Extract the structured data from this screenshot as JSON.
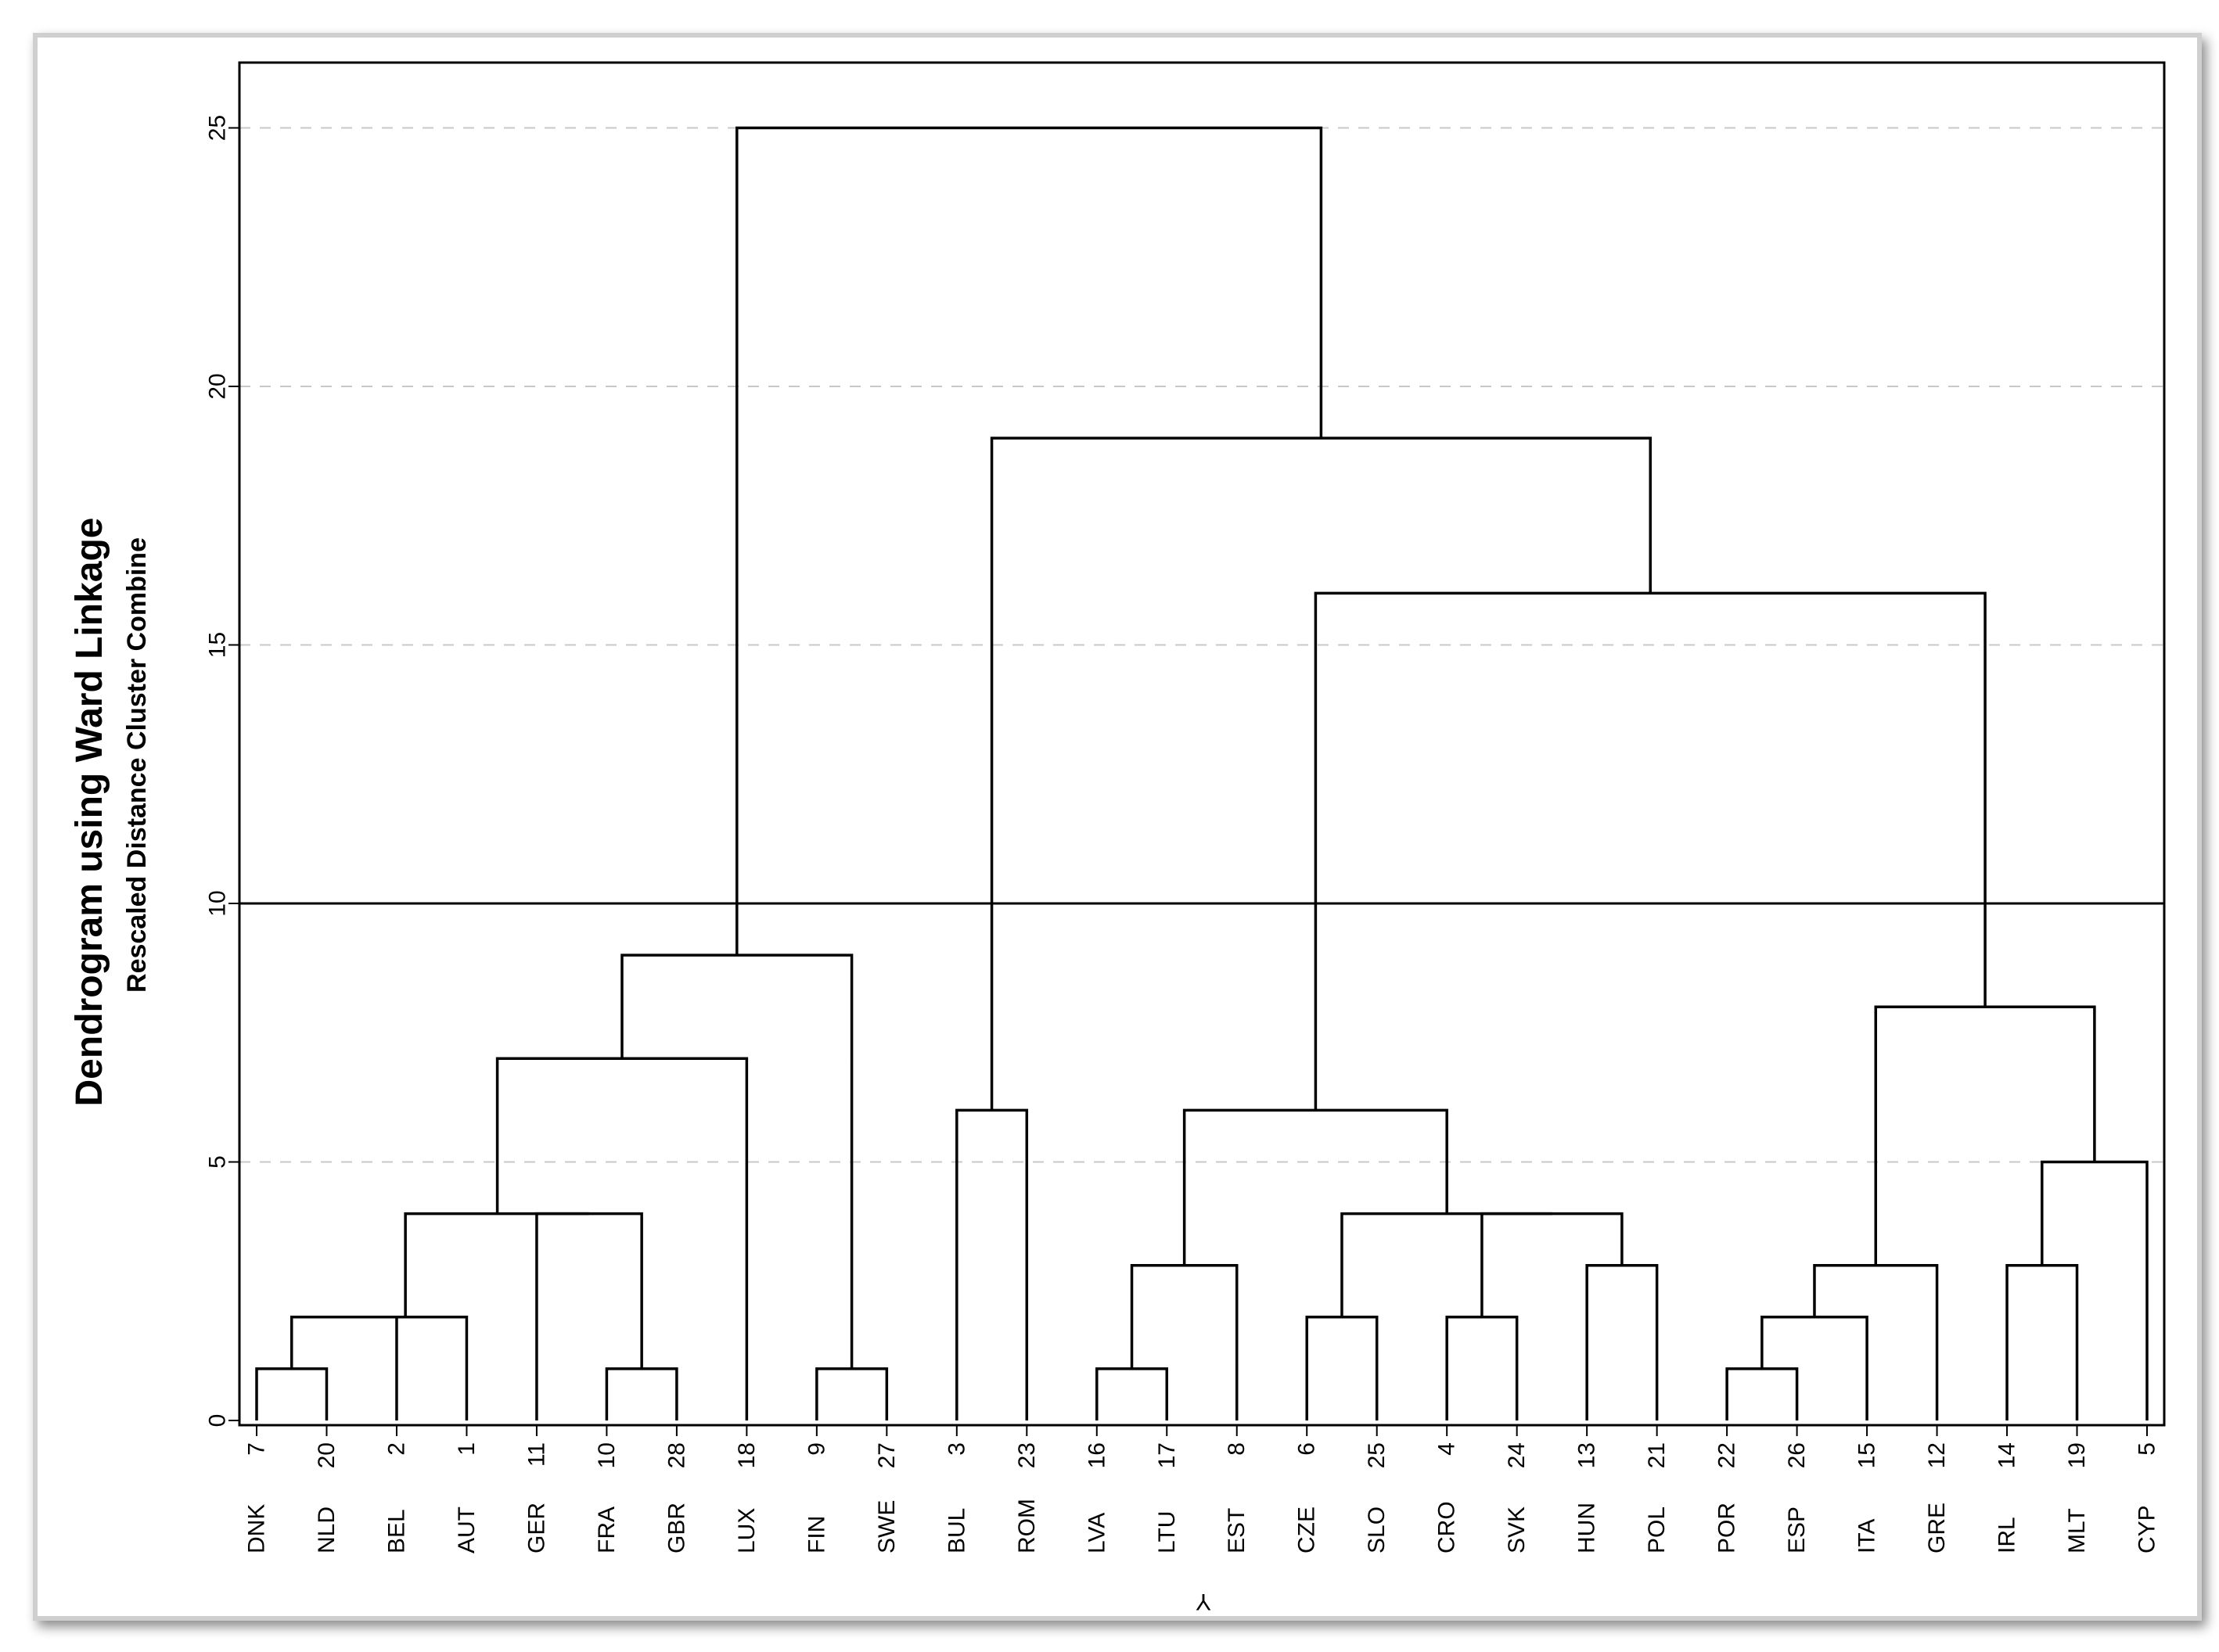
{
  "chart_data": {
    "type": "dendrogram",
    "title": "Dendrogram using Ward Linkage",
    "ylabel": "Rescaled Distance Cluster Combine",
    "xlabel": "Y",
    "ylim": [
      0,
      26.3
    ],
    "yticks": [
      0,
      5,
      10,
      15,
      20,
      25
    ],
    "grid": "horizontal dashed",
    "cut_line": 10,
    "leaves": [
      {
        "number": "7",
        "name": "DNK"
      },
      {
        "number": "20",
        "name": "NLD"
      },
      {
        "number": "2",
        "name": "BEL"
      },
      {
        "number": "1",
        "name": "AUT"
      },
      {
        "number": "11",
        "name": "GER"
      },
      {
        "number": "10",
        "name": "FRA"
      },
      {
        "number": "28",
        "name": "GBR"
      },
      {
        "number": "18",
        "name": "LUX"
      },
      {
        "number": "9",
        "name": "FIN"
      },
      {
        "number": "27",
        "name": "SWE"
      },
      {
        "number": "3",
        "name": "BUL"
      },
      {
        "number": "23",
        "name": "ROM"
      },
      {
        "number": "16",
        "name": "LVA"
      },
      {
        "number": "17",
        "name": "LTU"
      },
      {
        "number": "8",
        "name": "EST"
      },
      {
        "number": "6",
        "name": "CZE"
      },
      {
        "number": "25",
        "name": "SLO"
      },
      {
        "number": "4",
        "name": "CRO"
      },
      {
        "number": "24",
        "name": "SVK"
      },
      {
        "number": "13",
        "name": "HUN"
      },
      {
        "number": "21",
        "name": "POL"
      },
      {
        "number": "22",
        "name": "POR"
      },
      {
        "number": "26",
        "name": "ESP"
      },
      {
        "number": "15",
        "name": "ITA"
      },
      {
        "number": "12",
        "name": "GRE"
      },
      {
        "number": "14",
        "name": "IRL"
      },
      {
        "number": "19",
        "name": "MLT"
      },
      {
        "number": "5",
        "name": "CYP"
      }
    ],
    "merges": [
      {
        "id": "M1",
        "left": "L0",
        "right": "L1",
        "height": 1
      },
      {
        "id": "M2",
        "left": "M1",
        "right": "L2",
        "height": 2
      },
      {
        "id": "M3",
        "left": "M2",
        "right": "L3",
        "height": 2
      },
      {
        "id": "M4",
        "left": "L5",
        "right": "L6",
        "height": 1
      },
      {
        "id": "M5",
        "left": "L4",
        "right": "M4",
        "height": 4
      },
      {
        "id": "M6",
        "left": "M3",
        "right": "M5",
        "height": 4
      },
      {
        "id": "M7",
        "left": "M6",
        "right": "L7",
        "height": 7
      },
      {
        "id": "M8",
        "left": "L8",
        "right": "L9",
        "height": 1
      },
      {
        "id": "M9",
        "left": "M7",
        "right": "M8",
        "height": 9
      },
      {
        "id": "M10",
        "left": "L10",
        "right": "L11",
        "height": 6
      },
      {
        "id": "M11",
        "left": "L12",
        "right": "L13",
        "height": 1
      },
      {
        "id": "M12",
        "left": "M11",
        "right": "L14",
        "height": 3
      },
      {
        "id": "M13",
        "left": "L15",
        "right": "L16",
        "height": 2
      },
      {
        "id": "M14",
        "left": "L17",
        "right": "L18",
        "height": 2
      },
      {
        "id": "M15",
        "left": "L19",
        "right": "L20",
        "height": 3
      },
      {
        "id": "M16",
        "left": "M14",
        "right": "M15",
        "height": 4
      },
      {
        "id": "M17",
        "left": "M13",
        "right": "M16",
        "height": 4
      },
      {
        "id": "M18",
        "left": "M12",
        "right": "M17",
        "height": 6
      },
      {
        "id": "M19",
        "left": "L21",
        "right": "L22",
        "height": 1
      },
      {
        "id": "M20",
        "left": "M19",
        "right": "L23",
        "height": 2
      },
      {
        "id": "M21",
        "left": "M20",
        "right": "L24",
        "height": 3
      },
      {
        "id": "M22",
        "left": "L25",
        "right": "L26",
        "height": 3
      },
      {
        "id": "M23",
        "left": "M22",
        "right": "L27",
        "height": 5
      },
      {
        "id": "M24",
        "left": "M21",
        "right": "M23",
        "height": 8
      },
      {
        "id": "M25",
        "left": "M18",
        "right": "M24",
        "height": 16
      },
      {
        "id": "M26",
        "left": "M10",
        "right": "M25",
        "height": 19
      },
      {
        "id": "M27",
        "left": "M9",
        "right": "M26",
        "height": 25
      }
    ]
  }
}
